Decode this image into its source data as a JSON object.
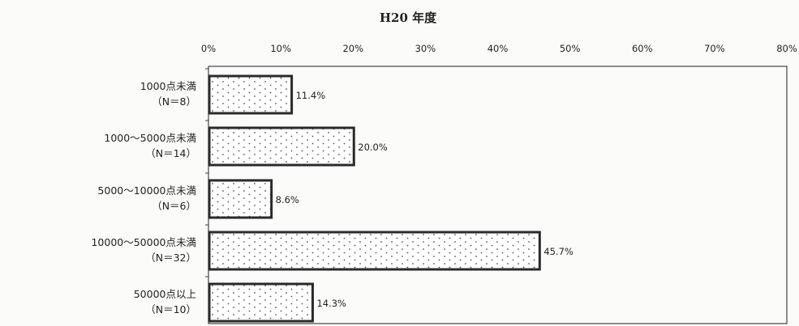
{
  "chart_data": {
    "type": "bar",
    "orientation": "horizontal",
    "title": "H20 年度",
    "xlim": [
      0,
      80
    ],
    "x_ticks": [
      "0%",
      "10%",
      "20%",
      "30%",
      "40%",
      "50%",
      "60%",
      "70%",
      "80%"
    ],
    "axis_position": "top",
    "categories": [
      {
        "label": "1000点未満",
        "n": "（N＝8）"
      },
      {
        "label": "1000～5000点未満",
        "n": "（N＝14）"
      },
      {
        "label": "5000～10000点未満",
        "n": "（N＝6）"
      },
      {
        "label": "10000～50000点未満",
        "n": "（N＝32）"
      },
      {
        "label": "50000点以上",
        "n": "（N＝10）"
      }
    ],
    "values": [
      11.4,
      20.0,
      8.6,
      45.7,
      14.3
    ],
    "value_labels": [
      "11.4%",
      "20.0%",
      "8.6%",
      "45.7%",
      "14.3%"
    ],
    "bar_fill": "dotted",
    "colors": {
      "bar_stroke": "#2a2a2a",
      "bar_fill": "#ffffff",
      "dot": "#555555",
      "plot_border": "#444444"
    }
  }
}
